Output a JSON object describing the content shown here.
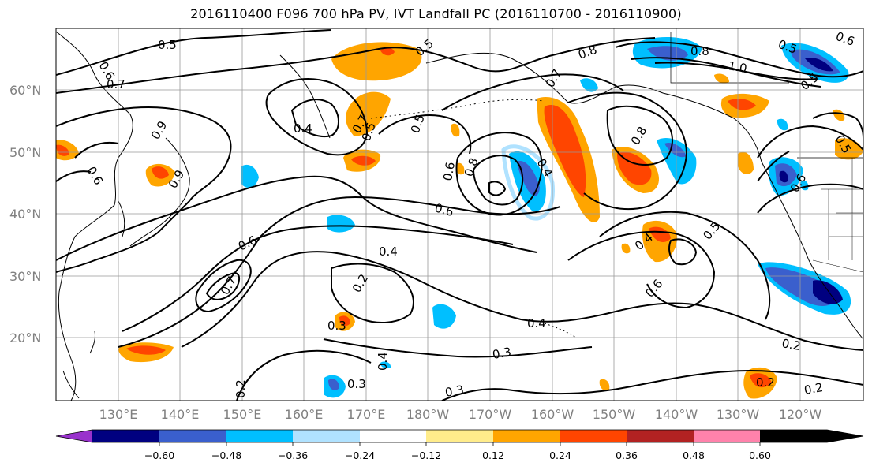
{
  "title": "2016110400 F096 700 hPa PV, IVT Landfall PC (2016110700 - 2016110900)",
  "lat_labels": [
    "60°N",
    "50°N",
    "40°N",
    "30°N",
    "20°N"
  ],
  "lon_labels": [
    "130°E",
    "140°E",
    "150°E",
    "160°E",
    "170°E",
    "180°W",
    "170°W",
    "160°W",
    "150°W",
    "140°W",
    "130°W",
    "120°W"
  ],
  "colorbar": {
    "tick_labels": [
      "−0.60",
      "−0.48",
      "−0.36",
      "−0.24",
      "−0.12",
      "0.12",
      "0.24",
      "0.36",
      "0.48",
      "0.60"
    ],
    "colors": [
      "#9932cc",
      "#000080",
      "#3a5fcd",
      "#00bfff",
      "#b0e2ff",
      "#ffffff",
      "#ffec8b",
      "#ffa500",
      "#ff4500",
      "#b22222",
      "#ff82ab"
    ]
  },
  "contour_labels": [
    "0.5",
    "0.6",
    "0.7",
    "0.4",
    "0.5",
    "0.5",
    "0.5",
    "0.8",
    "0.7",
    "0.8",
    "1.0",
    "0.5",
    "0.6",
    "0.8",
    "0.8",
    "0.4",
    "0.6",
    "0.6",
    "0.5",
    "0.4",
    "0.6",
    "0.7",
    "0.2",
    "0.3",
    "0.4",
    "0.3",
    "0.2",
    "0.3",
    "0.2",
    "0.2",
    "0.2",
    "0.6",
    "0.4",
    "0.5",
    "0.6",
    "0.9",
    "0.9",
    "0.7",
    "0.4",
    "0.6",
    "0.5",
    "0.3"
  ]
}
